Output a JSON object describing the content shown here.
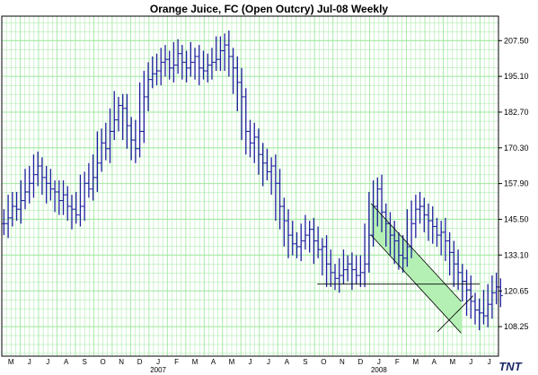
{
  "chart_data": {
    "type": "ohlc",
    "title": "Orange Juice, FC (Open Outcry) Jul-08  Weekly",
    "y_ticks": [
      108.25,
      120.65,
      133.1,
      145.5,
      157.9,
      170.3,
      182.7,
      195.1,
      207.5
    ],
    "y_tick_labels": [
      "108.25",
      "120.65",
      "133.10",
      "145.50",
      "157.90",
      "170.30",
      "182.70",
      "195.10",
      "207.50"
    ],
    "ylim": [
      98.0,
      216.0
    ],
    "x_months": [
      "M",
      "J",
      "J",
      "A",
      "S",
      "O",
      "N",
      "D",
      "J",
      "F",
      "M",
      "A",
      "M",
      "J",
      "J",
      "A",
      "S",
      "O",
      "N",
      "D",
      "J",
      "F",
      "M",
      "A",
      "M",
      "J",
      "J"
    ],
    "x_start": "2006-05-01",
    "years": [
      {
        "label": "2007",
        "month_index": 8
      },
      {
        "label": "2008",
        "month_index": 20
      }
    ],
    "grid": true,
    "bar_color": "#1f1f9e",
    "grid_color": "#9fe89f",
    "channel_fill": "#b4f0b4",
    "brand": "TNT",
    "weeks": [
      144,
      146,
      150,
      149,
      152,
      155,
      158,
      161,
      164,
      160,
      158,
      156,
      155,
      152,
      154,
      150,
      149,
      147,
      150,
      158,
      156,
      160,
      165,
      172,
      170,
      176,
      180,
      185,
      184,
      178,
      173,
      170,
      176,
      188,
      194,
      196,
      197,
      200,
      201,
      198,
      199,
      203,
      200,
      198,
      200,
      202,
      198,
      197,
      199,
      200,
      201,
      204,
      206,
      202,
      198,
      193,
      188,
      176,
      172,
      174,
      168,
      165,
      162,
      164,
      158,
      150,
      145,
      140,
      137,
      136,
      138,
      140,
      142,
      138,
      135,
      136,
      130,
      127,
      125,
      126,
      128,
      130,
      128,
      126,
      127,
      130,
      140,
      150,
      156,
      148,
      144,
      140,
      138,
      133,
      132,
      136,
      144,
      149,
      150,
      147,
      145,
      143,
      140,
      141,
      138,
      134,
      130,
      127,
      124,
      121,
      117,
      114,
      113,
      112,
      116,
      120,
      122,
      119
    ],
    "channel": {
      "upper": {
        "start": {
          "x": "2008-01-02",
          "y": 151.0
        },
        "end": {
          "x": "2008-05-30",
          "y": 117.0
        }
      },
      "lower": {
        "start": {
          "x": "2008-01-02",
          "y": 140.0
        },
        "end": {
          "x": "2008-05-30",
          "y": 106.0
        }
      }
    },
    "lines": [
      {
        "name": "horizontal",
        "start": {
          "x": "2007-10-05",
          "y": 123.0
        },
        "end": {
          "x": "2008-06-30",
          "y": 123.0
        }
      },
      {
        "name": "rising",
        "start": {
          "x": "2008-04-21",
          "y": 106.5
        },
        "end": {
          "x": "2008-06-19",
          "y": 119.0
        }
      }
    ]
  }
}
